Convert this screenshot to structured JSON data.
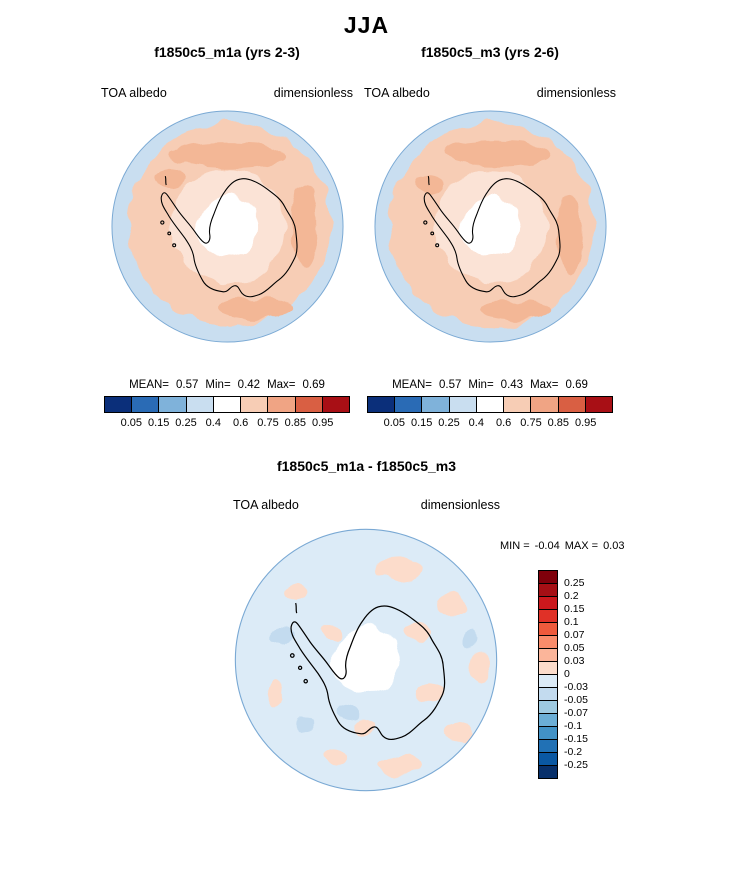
{
  "page": {
    "title": "JJA"
  },
  "top_panels": [
    {
      "title": "f1850c5_m1a (yrs 2-3)",
      "var_label": "TOA albedo",
      "units": "dimensionless",
      "stats": {
        "mean_label": "MEAN=",
        "mean": "0.57",
        "min_label": "Min=",
        "min": "0.42",
        "max_label": "Max=",
        "max": "0.69"
      }
    },
    {
      "title": "f1850c5_m3 (yrs 2-6)",
      "var_label": "TOA albedo",
      "units": "dimensionless",
      "stats": {
        "mean_label": "MEAN=",
        "mean": "0.57",
        "min_label": "Min=",
        "min": "0.43",
        "max_label": "Max=",
        "max": "0.69"
      }
    }
  ],
  "h_colorbar": {
    "ticks": [
      "0.05",
      "0.15",
      "0.25",
      "0.4",
      "0.6",
      "0.75",
      "0.85",
      "0.95"
    ],
    "colors": [
      "#0b2f7a",
      "#2a6bb5",
      "#7fb2da",
      "#c9def0",
      "#ffffff",
      "#f7cdb5",
      "#f0a484",
      "#d95f43",
      "#a80f15"
    ]
  },
  "diff_panel": {
    "title": "f1850c5_m1a - f1850c5_m3",
    "var_label": "TOA albedo",
    "units": "dimensionless",
    "min_label": "MIN =",
    "min": "-0.04",
    "max_label": "MAX =",
    "max": "0.03"
  },
  "v_colorbar": {
    "labels": [
      "0.25",
      "0.2",
      "0.15",
      "0.1",
      "0.07",
      "0.05",
      "0.03",
      "0",
      "-0.03",
      "-0.05",
      "-0.07",
      "-0.1",
      "-0.15",
      "-0.2",
      "-0.25"
    ],
    "colors": [
      "#7f000b",
      "#a50f15",
      "#cb181d",
      "#e03127",
      "#ef5a3c",
      "#f98c6b",
      "#fbb59a",
      "#fcdccb",
      "#dcebf7",
      "#c3dbef",
      "#9ecae1",
      "#6baed6",
      "#4292c6",
      "#2171b5",
      "#0a58a3",
      "#08306b"
    ]
  },
  "map_colors": {
    "ocean": "#c9def0",
    "ice_main": "#f7cdb5",
    "ice_dark": "#f3b796",
    "ice_pale": "#fbe3d6",
    "center_white": "#ffffff",
    "coast": "#000000",
    "circle_edge": "#7aa9d4",
    "diff_bg": "#dcebf7",
    "diff_pos": "#fcdccb",
    "diff_neg": "#c3dbef"
  },
  "chart_data": [
    {
      "type": "heatmap",
      "subtype": "south-polar-stereographic-contour-map",
      "season": "JJA",
      "title": "f1850c5_m1a (yrs 2-3)",
      "variable": "TOA albedo",
      "units": "dimensionless",
      "stats": {
        "mean": 0.57,
        "min": 0.42,
        "max": 0.69
      },
      "contour_levels": [
        0.05,
        0.15,
        0.25,
        0.4,
        0.6,
        0.75,
        0.85,
        0.95
      ],
      "palette": [
        "#0b2f7a",
        "#2a6bb5",
        "#7fb2da",
        "#c9def0",
        "#ffffff",
        "#f7cdb5",
        "#f0a484",
        "#d95f43",
        "#a80f15"
      ],
      "legend_position": "bottom"
    },
    {
      "type": "heatmap",
      "subtype": "south-polar-stereographic-contour-map",
      "season": "JJA",
      "title": "f1850c5_m3 (yrs 2-6)",
      "variable": "TOA albedo",
      "units": "dimensionless",
      "stats": {
        "mean": 0.57,
        "min": 0.43,
        "max": 0.69
      },
      "contour_levels": [
        0.05,
        0.15,
        0.25,
        0.4,
        0.6,
        0.75,
        0.85,
        0.95
      ],
      "palette": [
        "#0b2f7a",
        "#2a6bb5",
        "#7fb2da",
        "#c9def0",
        "#ffffff",
        "#f7cdb5",
        "#f0a484",
        "#d95f43",
        "#a80f15"
      ],
      "legend_position": "bottom"
    },
    {
      "type": "heatmap",
      "subtype": "south-polar-stereographic-contour-map",
      "season": "JJA",
      "title": "f1850c5_m1a - f1850c5_m3",
      "variable": "TOA albedo",
      "units": "dimensionless",
      "stats": {
        "min": -0.04,
        "max": 0.03
      },
      "contour_levels": [
        -0.25,
        -0.2,
        -0.15,
        -0.1,
        -0.07,
        -0.05,
        -0.03,
        0,
        0.03,
        0.05,
        0.07,
        0.1,
        0.15,
        0.2,
        0.25
      ],
      "palette": [
        "#08306b",
        "#0a58a3",
        "#2171b5",
        "#4292c6",
        "#6baed6",
        "#9ecae1",
        "#c3dbef",
        "#dcebf7",
        "#fcdccb",
        "#fbb59a",
        "#f98c6b",
        "#ef5a3c",
        "#e03127",
        "#cb181d",
        "#a50f15",
        "#7f000b"
      ],
      "legend_position": "right"
    }
  ]
}
